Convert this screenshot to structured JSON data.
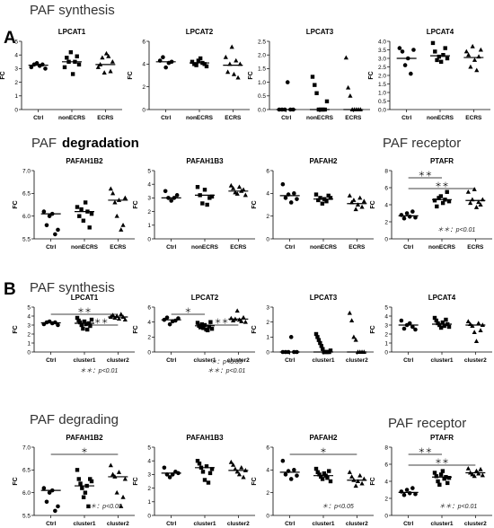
{
  "panels": [
    {
      "letter": "A",
      "section_titles": [
        "PAF synthesis",
        "PAF",
        "degradation",
        "PAF receptor"
      ]
    },
    {
      "letter": "B",
      "section_titles": [
        "PAF synthesis",
        "PAF degrading",
        "PAF receptor"
      ]
    }
  ],
  "y_axis_label": "FC",
  "chart_data": [
    {
      "id": "A-LPCAT1",
      "type": "scatter",
      "title": "LPCAT1",
      "categories": [
        "Ctrl",
        "nonECRS",
        "ECRS"
      ],
      "ylim": [
        0,
        5
      ],
      "yticks": [
        0,
        1,
        2,
        3,
        4,
        5
      ],
      "groups": [
        [
          3.1,
          3.3,
          3.4,
          3.2,
          3.3,
          3.0
        ],
        [
          3.1,
          3.8,
          3.5,
          4.2,
          2.6,
          3.5,
          3.9,
          3.3
        ],
        [
          3.1,
          3.3,
          3.8,
          2.7,
          4.1,
          3.9,
          2.8,
          3.5
        ]
      ],
      "medians": [
        3.25,
        3.5,
        3.3
      ],
      "markers": [
        "circle",
        "square",
        "triangle"
      ]
    },
    {
      "id": "A-LPCAT2",
      "type": "scatter",
      "title": "LPCAT2",
      "categories": [
        "Ctrl",
        "nonECRS",
        "ECRS"
      ],
      "ylim": [
        0,
        6
      ],
      "yticks": [
        0,
        2,
        4,
        6
      ],
      "groups": [
        [
          4.3,
          4.6,
          3.7,
          4.1,
          4.2
        ],
        [
          4.2,
          4.0,
          3.9,
          4.3,
          4.5,
          4.1,
          4.0,
          3.8
        ],
        [
          4.6,
          3.3,
          4.0,
          5.5,
          3.1,
          4.3,
          2.8,
          4.0
        ]
      ],
      "medians": [
        4.2,
        4.1,
        3.9
      ],
      "markers": [
        "circle",
        "square",
        "triangle"
      ]
    },
    {
      "id": "A-LPCAT3",
      "type": "scatter",
      "title": "LPCAT3",
      "categories": [
        "Ctrl",
        "nonECRS",
        "ECRS"
      ],
      "ylim": [
        0,
        2.5
      ],
      "yticks": [
        0.0,
        0.5,
        1.0,
        1.5,
        2.0,
        2.5
      ],
      "groups": [
        [
          0,
          0,
          0,
          1.0,
          0,
          0
        ],
        [
          1.2,
          0.9,
          0.6,
          0,
          0,
          0,
          0,
          0.3
        ],
        [
          1.9,
          0.8,
          0.5,
          0,
          0,
          0,
          0,
          0
        ]
      ],
      "medians": [
        0,
        0,
        0
      ],
      "markers": [
        "circle",
        "square",
        "triangle"
      ]
    },
    {
      "id": "A-LPCAT4",
      "type": "scatter",
      "title": "LPCAT4",
      "categories": [
        "Ctrl",
        "nonECRS",
        "ECRS"
      ],
      "ylim": [
        0,
        4
      ],
      "yticks": [
        0.0,
        0.5,
        1.0,
        1.5,
        2.0,
        2.5,
        3.0,
        3.5,
        4.0
      ],
      "groups": [
        [
          3.6,
          3.4,
          2.6,
          3.0,
          2.1,
          3.5
        ],
        [
          3.9,
          3.4,
          2.9,
          3.1,
          2.8,
          3.2,
          3.6,
          3.0
        ],
        [
          3.4,
          3.2,
          2.5,
          3.7,
          2.9,
          2.3,
          3.1,
          3.5
        ]
      ],
      "medians": [
        3.0,
        3.15,
        3.05
      ],
      "markers": [
        "circle",
        "square",
        "triangle"
      ]
    },
    {
      "id": "A-PAFAH1B2",
      "type": "scatter",
      "title": "PAFAH1B2",
      "categories": [
        "Ctrl",
        "nonECRS",
        "ECRS"
      ],
      "ylim": [
        5.5,
        7.0
      ],
      "yticks": [
        5.5,
        6.0,
        6.5,
        7.0
      ],
      "groups": [
        [
          6.1,
          5.8,
          6.0,
          6.05,
          5.6,
          5.7
        ],
        [
          6.2,
          6.0,
          6.15,
          5.9,
          6.3,
          6.1,
          5.75,
          6.05
        ],
        [
          6.6,
          6.5,
          6.3,
          6.0,
          6.35,
          5.7,
          5.8,
          6.4
        ]
      ],
      "medians": [
        6.05,
        6.1,
        6.35
      ],
      "markers": [
        "circle",
        "square",
        "triangle"
      ]
    },
    {
      "id": "A-PAFAH1B3",
      "type": "scatter",
      "title": "PAFAH1B3",
      "categories": [
        "Ctrl",
        "nonECRS",
        "ECRS"
      ],
      "ylim": [
        0,
        5
      ],
      "yticks": [
        0,
        1,
        2,
        3,
        4,
        5
      ],
      "groups": [
        [
          3.5,
          3.0,
          2.8,
          3.0,
          3.2
        ],
        [
          3.8,
          3.2,
          2.6,
          3.6,
          2.5,
          3.0,
          3.1
        ],
        [
          3.9,
          3.7,
          3.4,
          3.3,
          3.8,
          3.5,
          3.6,
          3.2
        ]
      ],
      "medians": [
        3.0,
        3.2,
        3.5
      ],
      "markers": [
        "circle",
        "square",
        "triangle"
      ]
    },
    {
      "id": "A-PAFAH2",
      "type": "scatter",
      "title": "PAFAH2",
      "categories": [
        "Ctrl",
        "nonECRS",
        "ECRS"
      ],
      "ylim": [
        0,
        6
      ],
      "yticks": [
        0,
        2,
        4,
        6
      ],
      "groups": [
        [
          4.8,
          3.6,
          3.9,
          3.2,
          4.0,
          3.5
        ],
        [
          3.9,
          3.4,
          3.6,
          3.1,
          3.5,
          3.3,
          3.8,
          3.6
        ],
        [
          3.8,
          3.2,
          3.4,
          2.6,
          3.0,
          3.6,
          2.8,
          3.3
        ]
      ],
      "medians": [
        3.8,
        3.5,
        3.1
      ],
      "markers": [
        "circle",
        "square",
        "triangle"
      ]
    },
    {
      "id": "A-PTAFR",
      "type": "scatter",
      "title": "PTAFR",
      "categories": [
        "Ctrl",
        "nonECRS",
        "ECRS"
      ],
      "ylim": [
        0,
        8
      ],
      "yticks": [
        0,
        2,
        4,
        6,
        8
      ],
      "groups": [
        [
          2.8,
          2.4,
          3.0,
          2.6,
          3.2,
          2.5
        ],
        [
          4.5,
          3.8,
          4.8,
          5.0,
          4.2,
          4.6,
          5.5,
          4.4
        ],
        [
          5.5,
          4.2,
          4.6,
          5.8,
          3.7,
          4.3,
          4.0,
          4.6
        ]
      ],
      "medians": [
        2.7,
        4.6,
        4.5
      ],
      "markers": [
        "circle",
        "square",
        "triangle"
      ],
      "brackets": [
        {
          "from": 0,
          "to": 1,
          "label": "＊＊"
        },
        {
          "from": 0,
          "to": 2,
          "label": "＊＊"
        }
      ],
      "notes": [
        "＊＊：p<0.01"
      ]
    },
    {
      "id": "B-LPCAT1",
      "type": "scatter",
      "title": "LPCAT1",
      "categories": [
        "Ctrl",
        "cluster1",
        "cluster2"
      ],
      "ylim": [
        0,
        5
      ],
      "yticks": [
        0,
        1,
        2,
        3,
        4,
        5
      ],
      "groups": [
        [
          3.1,
          3.3,
          3.4,
          3.2,
          3.3,
          3.0
        ],
        [
          3.8,
          3.5,
          3.3,
          3.0,
          2.6,
          3.4,
          3.1,
          2.5,
          3.2,
          2.9,
          3.6
        ],
        [
          3.9,
          4.1,
          3.8,
          4.0,
          3.7,
          4.2,
          3.9,
          3.6
        ]
      ],
      "medians": [
        3.25,
        3.2,
        3.9
      ],
      "markers": [
        "circle",
        "square",
        "triangle"
      ],
      "brackets": [
        {
          "from": 0,
          "to": 2,
          "label": "＊＊"
        },
        {
          "from": 1,
          "to": 2,
          "label": "＊＊"
        }
      ],
      "notes": [
        "＊＊：p<0.01"
      ]
    },
    {
      "id": "B-LPCAT2",
      "type": "scatter",
      "title": "LPCAT2",
      "categories": [
        "Ctrl",
        "cluster1",
        "cluster2"
      ],
      "ylim": [
        0,
        6
      ],
      "yticks": [
        0,
        2,
        4,
        6
      ],
      "groups": [
        [
          4.3,
          4.6,
          3.7,
          4.1,
          4.2,
          4.5
        ],
        [
          3.9,
          3.5,
          3.3,
          3.7,
          3.2,
          3.6,
          3.0,
          2.9,
          3.4,
          4.0,
          3.1
        ],
        [
          4.5,
          4.2,
          4.4,
          5.5,
          4.3,
          4.1,
          4.6,
          4.0
        ]
      ],
      "medians": [
        4.3,
        3.5,
        4.4
      ],
      "markers": [
        "circle",
        "square",
        "triangle"
      ],
      "brackets": [
        {
          "from": 0,
          "to": 1,
          "label": "＊"
        },
        {
          "from": 1,
          "to": 2,
          "label": "＊＊"
        }
      ],
      "notes": [
        "＊：p<0.05",
        "＊＊：p<0.01"
      ]
    },
    {
      "id": "B-LPCAT3",
      "type": "scatter",
      "title": "LPCAT3",
      "categories": [
        "Ctrl",
        "cluster1",
        "cluster2"
      ],
      "ylim": [
        0,
        3
      ],
      "yticks": [
        0,
        1,
        2,
        3
      ],
      "groups": [
        [
          0,
          0,
          0,
          1.0,
          0,
          0
        ],
        [
          1.2,
          1.0,
          0.8,
          0.6,
          0.4,
          0.2,
          0,
          0,
          0,
          0,
          0,
          0.1
        ],
        [
          2.6,
          2.1,
          1.0,
          0.8,
          0,
          0,
          0,
          0
        ]
      ],
      "medians": [
        0,
        0,
        0
      ],
      "markers": [
        "circle",
        "square",
        "triangle"
      ]
    },
    {
      "id": "B-LPCAT4",
      "type": "scatter",
      "title": "LPCAT4",
      "categories": [
        "Ctrl",
        "cluster1",
        "cluster2"
      ],
      "ylim": [
        0,
        5
      ],
      "yticks": [
        0,
        1,
        2,
        3,
        4,
        5
      ],
      "groups": [
        [
          3.5,
          2.6,
          3.0,
          3.2,
          2.8,
          2.5
        ],
        [
          3.8,
          3.5,
          3.2,
          3.0,
          2.7,
          3.3,
          2.9,
          3.6,
          3.1,
          2.8
        ],
        [
          3.4,
          3.1,
          2.9,
          2.2,
          1.2,
          3.2,
          2.4,
          3.0
        ]
      ],
      "medians": [
        3.0,
        3.1,
        3.0
      ],
      "markers": [
        "circle",
        "square",
        "triangle"
      ]
    },
    {
      "id": "B-PAFAH1B2",
      "type": "scatter",
      "title": "PAFAH1B2",
      "categories": [
        "Ctrl",
        "cluster1",
        "cluster2"
      ],
      "ylim": [
        5.5,
        7.0
      ],
      "yticks": [
        5.5,
        6.0,
        6.5,
        7.0
      ],
      "groups": [
        [
          6.1,
          5.8,
          6.0,
          6.05,
          5.6,
          5.7
        ],
        [
          6.5,
          6.3,
          6.2,
          6.1,
          5.9,
          6.0,
          6.15,
          5.7,
          6.3,
          6.25
        ],
        [
          6.6,
          6.4,
          6.35,
          6.0,
          6.45,
          5.7,
          5.9,
          6.3
        ]
      ],
      "medians": [
        6.05,
        6.15,
        6.35
      ],
      "markers": [
        "circle",
        "square",
        "triangle"
      ],
      "brackets": [
        {
          "from": 0,
          "to": 2,
          "label": "＊"
        }
      ],
      "notes": [
        "＊：p<0.05"
      ]
    },
    {
      "id": "B-PAFAH1B3",
      "type": "scatter",
      "title": "PAFAH1B3",
      "categories": [
        "Ctrl",
        "cluster1",
        "cluster2"
      ],
      "ylim": [
        0,
        5
      ],
      "yticks": [
        0,
        1,
        2,
        3,
        4,
        5
      ],
      "groups": [
        [
          3.5,
          3.0,
          2.8,
          3.0,
          3.2,
          3.1
        ],
        [
          4.0,
          3.8,
          3.5,
          3.2,
          2.6,
          3.6,
          2.4,
          3.1,
          3.4
        ],
        [
          3.9,
          3.7,
          3.4,
          3.2,
          3.0,
          3.5,
          2.8,
          3.3
        ]
      ],
      "medians": [
        3.1,
        3.5,
        3.3
      ],
      "markers": [
        "circle",
        "square",
        "triangle"
      ]
    },
    {
      "id": "B-PAFAH2",
      "type": "scatter",
      "title": "PAFAH2",
      "categories": [
        "Ctrl",
        "cluster1",
        "cluster2"
      ],
      "ylim": [
        0,
        6
      ],
      "yticks": [
        0,
        2,
        4,
        6
      ],
      "groups": [
        [
          4.8,
          3.6,
          3.9,
          3.2,
          4.0,
          3.5
        ],
        [
          4.1,
          3.8,
          3.6,
          3.4,
          3.2,
          3.7,
          3.5,
          3.3,
          3.9,
          3.0
        ],
        [
          3.8,
          3.4,
          3.1,
          2.6,
          3.0,
          3.5,
          2.8,
          3.2
        ]
      ],
      "medians": [
        3.8,
        3.5,
        3.1
      ],
      "markers": [
        "circle",
        "square",
        "triangle"
      ],
      "brackets": [
        {
          "from": 0,
          "to": 2,
          "label": "＊"
        }
      ],
      "notes": [
        "＊：p<0.05"
      ]
    },
    {
      "id": "B-PTAFR",
      "type": "scatter",
      "title": "PTAFR",
      "categories": [
        "Ctrl",
        "cluster1",
        "cluster2"
      ],
      "ylim": [
        0,
        8
      ],
      "yticks": [
        0,
        2,
        4,
        6,
        8
      ],
      "groups": [
        [
          2.8,
          2.4,
          3.0,
          2.6,
          3.2,
          2.5
        ],
        [
          5.0,
          4.6,
          4.0,
          3.6,
          4.8,
          5.2,
          4.3,
          4.5,
          3.8,
          4.4
        ],
        [
          5.5,
          5.0,
          4.8,
          4.6,
          5.2,
          4.9,
          5.4,
          4.7
        ]
      ],
      "medians": [
        2.7,
        4.5,
        5.0
      ],
      "markers": [
        "circle",
        "square",
        "triangle"
      ],
      "brackets": [
        {
          "from": 0,
          "to": 1,
          "label": "＊＊"
        },
        {
          "from": 0,
          "to": 2,
          "label": "＊＊"
        }
      ],
      "notes": [
        "＊＊：p<0.01"
      ]
    }
  ]
}
